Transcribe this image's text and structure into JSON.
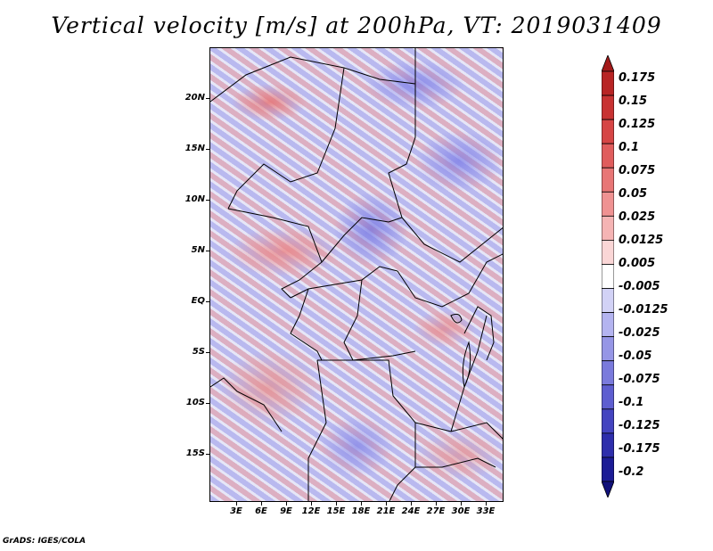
{
  "title": "Vertical velocity [m/s] at 200hPa, VT: 2019031409",
  "footer": "GrADS: IGES/COLA",
  "map": {
    "field": "vertical velocity",
    "units": "m/s",
    "level": "200hPa",
    "valid_time": "2019031409",
    "lat_labels": [
      "20N",
      "15N",
      "10N",
      "5N",
      "EQ",
      "5S",
      "10S",
      "15S"
    ],
    "lon_labels": [
      "3E",
      "6E",
      "9E",
      "12E",
      "15E",
      "18E",
      "21E",
      "24E",
      "27E",
      "30E",
      "33E"
    ]
  },
  "colorbar": {
    "labels": [
      "0.175",
      "0.15",
      "0.125",
      "0.1",
      "0.075",
      "0.05",
      "0.025",
      "0.0125",
      "0.005",
      "-0.005",
      "-0.0125",
      "-0.025",
      "-0.05",
      "-0.075",
      "-0.1",
      "-0.125",
      "-0.175",
      "-0.2"
    ],
    "colors": [
      "#a31a1a",
      "#b82424",
      "#c83232",
      "#d64545",
      "#e05d5d",
      "#e87676",
      "#ef9292",
      "#f5b4b4",
      "#fad6d6",
      "#ffffff",
      "#d2d2f6",
      "#b4b4f0",
      "#9696e6",
      "#7a7adc",
      "#5e5ed0",
      "#4444c0",
      "#2e2eac",
      "#1c1c96",
      "#10107a"
    ]
  }
}
